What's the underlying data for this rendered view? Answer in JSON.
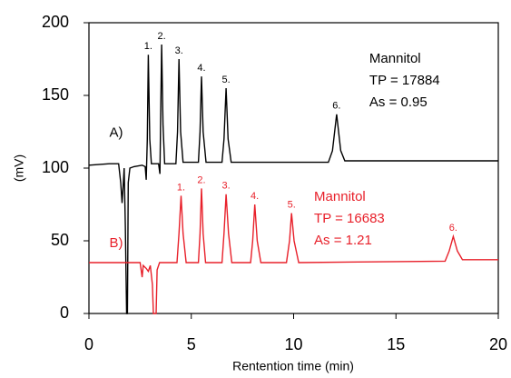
{
  "chart_data": {
    "type": "line",
    "xlabel": "Rentention time (min)",
    "ylabel": "(mV)",
    "xlim": [
      0,
      20
    ],
    "ylim": [
      0,
      200
    ],
    "xticks": [
      0,
      5,
      10,
      15,
      20
    ],
    "yticks": [
      0,
      50,
      100,
      150,
      200
    ],
    "series": [
      {
        "name": "A)",
        "color": "#000000",
        "info": [
          "Mannitol",
          "TP = 17884",
          "As = 0.95"
        ],
        "peak_labels": [
          "1.",
          "2.",
          "3.",
          "4.",
          "5.",
          "6."
        ],
        "x": [
          0,
          1.0,
          1.45,
          1.55,
          1.62,
          1.68,
          1.72,
          1.78,
          1.84,
          1.88,
          1.92,
          2.0,
          2.2,
          2.6,
          2.75,
          2.8,
          2.85,
          2.9,
          2.97,
          3.05,
          3.4,
          3.47,
          3.5,
          3.55,
          3.62,
          3.7,
          4.25,
          4.33,
          4.4,
          4.48,
          4.6,
          5.35,
          5.43,
          5.5,
          5.58,
          5.72,
          6.5,
          6.6,
          6.7,
          6.8,
          6.95,
          11.7,
          11.9,
          12.1,
          12.3,
          12.5,
          20
        ],
        "values": [
          102,
          103,
          103,
          90,
          76,
          90,
          100,
          60,
          0,
          0,
          90,
          100,
          101,
          102,
          101,
          92,
          120,
          178,
          120,
          103,
          103,
          96,
          130,
          185,
          130,
          103,
          103,
          125,
          175,
          125,
          104,
          104,
          125,
          163,
          125,
          104,
          104,
          120,
          155,
          120,
          104,
          104,
          112,
          137,
          112,
          105,
          105
        ]
      },
      {
        "name": "B)",
        "color": "#e8202a",
        "info": [
          "Mannitol",
          "TP = 16683",
          "As = 1.21"
        ],
        "peak_labels": [
          "1.",
          "2.",
          "3.",
          "4.",
          "5.",
          "6."
        ],
        "x": [
          0,
          1.0,
          2.0,
          2.5,
          2.55,
          2.6,
          2.65,
          2.8,
          2.9,
          3.0,
          3.1,
          3.15,
          3.28,
          3.33,
          3.45,
          4.3,
          4.4,
          4.5,
          4.6,
          4.75,
          5.35,
          5.43,
          5.5,
          5.58,
          5.7,
          6.5,
          6.6,
          6.7,
          6.82,
          6.98,
          7.9,
          8.0,
          8.1,
          8.22,
          8.4,
          9.65,
          9.8,
          9.9,
          10.02,
          10.25,
          17.4,
          17.6,
          17.8,
          18.0,
          18.25,
          20
        ],
        "values": [
          35,
          35,
          35,
          35,
          30,
          25,
          33,
          31,
          29,
          33,
          20,
          0,
          0,
          30,
          35,
          35,
          55,
          81,
          55,
          35,
          35,
          55,
          86,
          55,
          35,
          35,
          55,
          82,
          55,
          35,
          35,
          50,
          75,
          50,
          35,
          35,
          50,
          69,
          50,
          35,
          36,
          43,
          53,
          43,
          37,
          37
        ]
      }
    ]
  }
}
